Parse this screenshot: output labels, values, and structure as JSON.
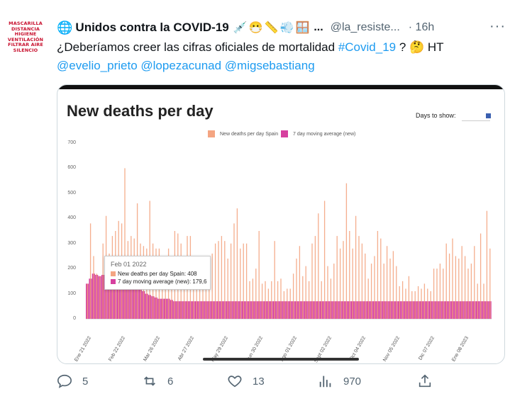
{
  "avatar": {
    "lines": [
      "MASCARILLA",
      "DISTANCIA",
      "HIGIENE",
      "VENTILACIÓN",
      "FILTRAR AIRE",
      "SILENCIO"
    ]
  },
  "tweet": {
    "display_name": "Unidos contra la COVID-19",
    "name_emojis": "💉😷📏💨🪟",
    "name_ellipsis": "...",
    "handle": "@la_resiste...",
    "time": "· 16h",
    "text_before": "¿Deberíamos creer las cifras oficiales de mortalidad ",
    "hashtag": "#Covid_19",
    "text_after": " ? 🤔 HT",
    "mentions": [
      "@evelio_prieto",
      "@lopezacunad",
      "@migsebastiang"
    ]
  },
  "media": {
    "chart_title": "New deaths per day",
    "days_to_show_label": "Days to show:",
    "tooltip": {
      "date": "Feb 01 2022",
      "line1": "New deaths per day Spain: 408",
      "line2": "7 day moving average (new): 179,6"
    }
  },
  "chart_data": {
    "type": "bar",
    "title": "New deaths per day",
    "series": [
      {
        "name": "New deaths per day Spain",
        "color": "#f4a582"
      },
      {
        "name": "7 day moving average (new)",
        "color": "#d6409f"
      }
    ],
    "ylim": [
      0,
      700
    ],
    "y_ticks": [
      0,
      100,
      200,
      300,
      400,
      500,
      600,
      700
    ],
    "x_tick_labels": [
      "Ene 21 2022",
      "Feb 22 2022",
      "Mar 26 2022",
      "Abr 27 2022",
      "May 29 2022",
      "Jun 30 2022",
      "Ago 01 2022",
      "Sept 02 2022",
      "Oct 04 2022",
      "Nov 05 2022",
      "Dic 07 2022",
      "Ene 08 2023"
    ],
    "daily": [
      140,
      380,
      250,
      180,
      170,
      300,
      410,
      260,
      330,
      350,
      390,
      380,
      600,
      310,
      330,
      320,
      460,
      300,
      290,
      280,
      470,
      300,
      280,
      280,
      250,
      240,
      280,
      250,
      350,
      340,
      300,
      210,
      330,
      330,
      200,
      190,
      200,
      240,
      190,
      190,
      260,
      300,
      310,
      330,
      310,
      240,
      300,
      380,
      440,
      280,
      300,
      300,
      150,
      160,
      200,
      350,
      140,
      150,
      120,
      150,
      310,
      150,
      160,
      110,
      120,
      120,
      180,
      240,
      290,
      170,
      210,
      150,
      300,
      330,
      420,
      150,
      470,
      210,
      160,
      220,
      330,
      280,
      310,
      540,
      350,
      280,
      410,
      330,
      300,
      260,
      160,
      220,
      250,
      350,
      320,
      220,
      290,
      240,
      270,
      210,
      130,
      150,
      120,
      170,
      110,
      110,
      130,
      120,
      140,
      120,
      110,
      200,
      200,
      220,
      200,
      300,
      260,
      320,
      250,
      240,
      290,
      250,
      200,
      220,
      290,
      140,
      340,
      140,
      430,
      280
    ],
    "moving_average": [
      140,
      160,
      180,
      175,
      170,
      175,
      180,
      178,
      176,
      174,
      172,
      170,
      168,
      165,
      150,
      140,
      130,
      120,
      110,
      100,
      95,
      90,
      85,
      80,
      80,
      80,
      80,
      75,
      70,
      70,
      70,
      70,
      70,
      70,
      70,
      70,
      70,
      70,
      70,
      70,
      70,
      70,
      70,
      70,
      70,
      70,
      70,
      70,
      70,
      70,
      70,
      70,
      70,
      70,
      70,
      70,
      70,
      70,
      70,
      70,
      70,
      70,
      70,
      70,
      70,
      70,
      70,
      70,
      70,
      70,
      70,
      70,
      70,
      70,
      70,
      70,
      70,
      70,
      70,
      70,
      70,
      70,
      70,
      70,
      70,
      70,
      70,
      70,
      70,
      70,
      70,
      70,
      70,
      70,
      70,
      70,
      70,
      70,
      70,
      70,
      70,
      70,
      70,
      70,
      70,
      70,
      70,
      70,
      70,
      70,
      70,
      70,
      70,
      70,
      70,
      70,
      70,
      70,
      70,
      70,
      70,
      70,
      70,
      70,
      70,
      70,
      70,
      70,
      70,
      70
    ],
    "legend_position": "top-center",
    "grid": false
  },
  "actions": {
    "reply": "5",
    "retweet": "6",
    "like": "13",
    "views": "970"
  }
}
